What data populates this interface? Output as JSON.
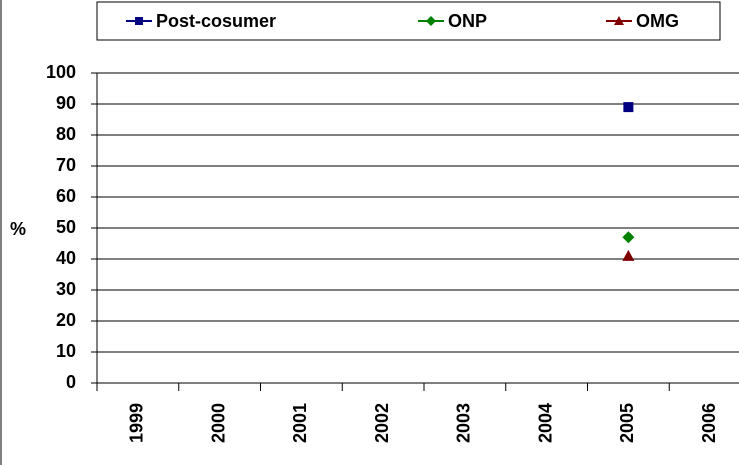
{
  "chart_data": {
    "type": "line",
    "y_label": "%",
    "categories": [
      "1999",
      "2000",
      "2001",
      "2002",
      "2003",
      "2004",
      "2005",
      "2006"
    ],
    "series": [
      {
        "name": "Post-cosumer",
        "color": "#000080",
        "marker": "square",
        "values": [
          null,
          null,
          null,
          null,
          null,
          null,
          89,
          null
        ]
      },
      {
        "name": "ONP",
        "color": "#008000",
        "marker": "diamond",
        "values": [
          null,
          null,
          null,
          null,
          null,
          null,
          47,
          null
        ]
      },
      {
        "name": "OMG",
        "color": "#800000",
        "marker": "triangle",
        "values": [
          null,
          null,
          null,
          null,
          null,
          null,
          41,
          null
        ]
      }
    ],
    "ylim": [
      0,
      100
    ],
    "yticks": [
      0,
      10,
      20,
      30,
      40,
      50,
      60,
      70,
      80,
      90,
      100
    ],
    "grid": true,
    "legend": "top"
  }
}
